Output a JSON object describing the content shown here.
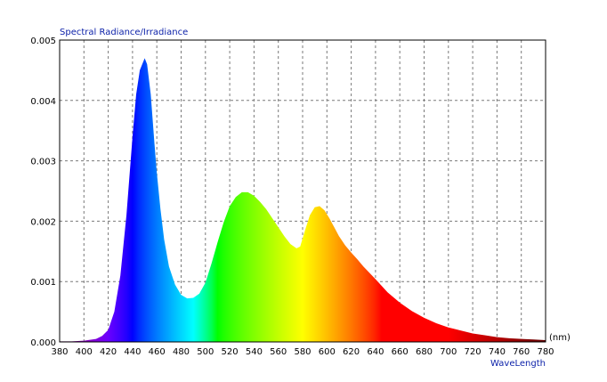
{
  "chart_data": {
    "type": "area",
    "title": "Spectral Radiance/Irradiance",
    "xlabel": "WaveLength",
    "xunit": "(nm)",
    "ylabel": "",
    "xlim": [
      380,
      780
    ],
    "ylim": [
      0,
      0.005
    ],
    "x_ticks": [
      "380",
      "400",
      "420",
      "440",
      "460",
      "480",
      "500",
      "520",
      "540",
      "560",
      "580",
      "600",
      "620",
      "640",
      "660",
      "680",
      "700",
      "720",
      "740",
      "760",
      "780"
    ],
    "y_ticks": [
      "0.000",
      "0.001",
      "0.002",
      "0.003",
      "0.004",
      "0.005"
    ],
    "grid": true,
    "fill": "spectrum-colored",
    "series": [
      {
        "x": [
          380,
          390,
          400,
          410,
          415,
          420,
          425,
          430,
          435,
          440,
          443,
          446,
          449,
          450,
          452,
          455,
          458,
          460,
          463,
          466,
          470,
          475,
          480,
          485,
          490,
          495,
          500,
          505,
          510,
          515,
          520,
          525,
          530,
          535,
          540,
          545,
          550,
          555,
          560,
          565,
          570,
          575,
          578,
          582,
          586,
          590,
          594,
          598,
          602,
          606,
          610,
          615,
          620,
          625,
          630,
          640,
          650,
          660,
          670,
          680,
          690,
          700,
          710,
          720,
          730,
          740,
          750,
          760,
          770,
          780
        ],
        "y": [
          1e-05,
          1e-05,
          2e-05,
          5e-05,
          0.0001,
          0.0002,
          0.0005,
          0.0011,
          0.0021,
          0.0034,
          0.0041,
          0.0045,
          0.00465,
          0.0047,
          0.0046,
          0.0041,
          0.0033,
          0.0028,
          0.0022,
          0.0017,
          0.00125,
          0.00095,
          0.00078,
          0.00072,
          0.00073,
          0.0008,
          0.00098,
          0.0013,
          0.00165,
          0.00198,
          0.00225,
          0.0024,
          0.00248,
          0.00248,
          0.00242,
          0.00232,
          0.0022,
          0.00205,
          0.0019,
          0.00175,
          0.00162,
          0.00155,
          0.00158,
          0.00185,
          0.0021,
          0.00223,
          0.00225,
          0.00218,
          0.00205,
          0.0019,
          0.00175,
          0.0016,
          0.00148,
          0.00137,
          0.00125,
          0.00104,
          0.00082,
          0.00065,
          0.00051,
          0.0004,
          0.00031,
          0.00024,
          0.00019,
          0.00014,
          0.00011,
          8e-05,
          6e-05,
          5e-05,
          4e-05,
          3e-05
        ]
      }
    ]
  }
}
